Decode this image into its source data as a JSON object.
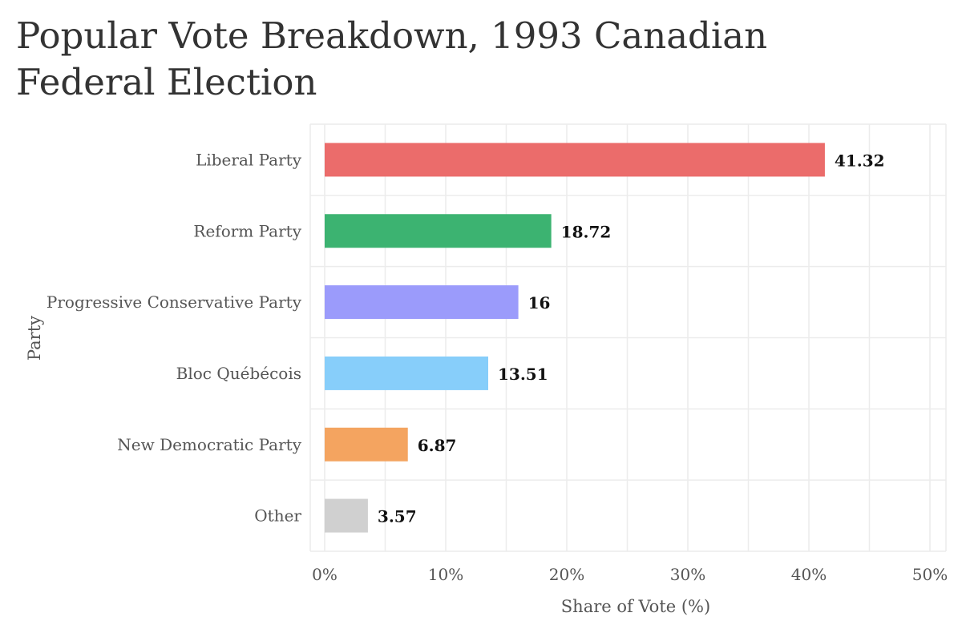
{
  "chart_data": {
    "type": "bar",
    "orientation": "horizontal",
    "title": "Popular Vote Breakdown, 1993 Canadian Federal Election",
    "xlabel": "Share of Vote (%)",
    "ylabel": "Party",
    "xlim": [
      0,
      50
    ],
    "x_ticks": [
      0,
      10,
      20,
      30,
      40,
      50
    ],
    "x_tick_labels": [
      "0%",
      "10%",
      "20%",
      "30%",
      "40%",
      "50%"
    ],
    "grid": true,
    "legend": "none",
    "categories": [
      "Liberal Party",
      "Reform Party",
      "Progressive Conservative Party",
      "Bloc Québécois",
      "New Democratic Party",
      "Other"
    ],
    "values": [
      41.32,
      18.72,
      16,
      13.51,
      6.87,
      3.57
    ],
    "value_labels": [
      "41.32",
      "18.72",
      "16",
      "13.51",
      "6.87",
      "3.57"
    ],
    "colors": [
      "#eb6c6b",
      "#3cb371",
      "#9b9bfb",
      "#87cefa",
      "#f4a460",
      "#d0d0d0"
    ]
  }
}
